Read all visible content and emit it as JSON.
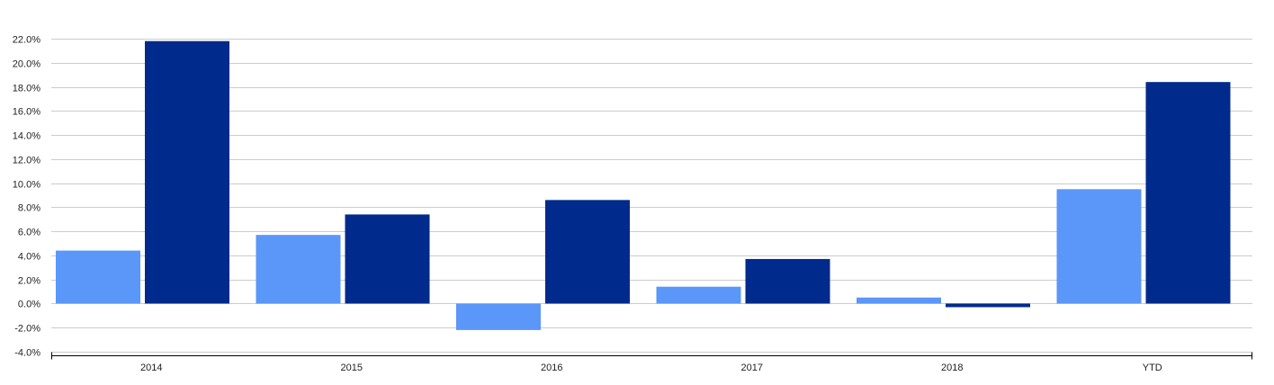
{
  "chart_data": {
    "type": "bar",
    "title": "",
    "xlabel": "",
    "ylabel": "",
    "categories": [
      "2014",
      "2015",
      "2016",
      "2017",
      "2018",
      "YTD"
    ],
    "series": [
      {
        "values": [
          4.4,
          5.7,
          -2.2,
          1.4,
          0.5,
          9.5
        ],
        "color": "#5b97f8"
      },
      {
        "values": [
          21.8,
          7.4,
          8.6,
          3.7,
          -0.3,
          18.4
        ],
        "color": "#002a8c"
      }
    ],
    "ylim": [
      -4.0,
      22.0
    ],
    "yticks": [
      "22.0%",
      "20.0%",
      "18.0%",
      "16.0%",
      "14.0%",
      "12.0%",
      "10.0%",
      "8.0%",
      "6.0%",
      "4.0%",
      "2.0%",
      "0.0%",
      "-2.0%",
      "-4.0%"
    ],
    "ytick_values": [
      22,
      20,
      18,
      16,
      14,
      12,
      10,
      8,
      6,
      4,
      2,
      0,
      -2,
      -4
    ],
    "grid": true,
    "legend": "none"
  }
}
